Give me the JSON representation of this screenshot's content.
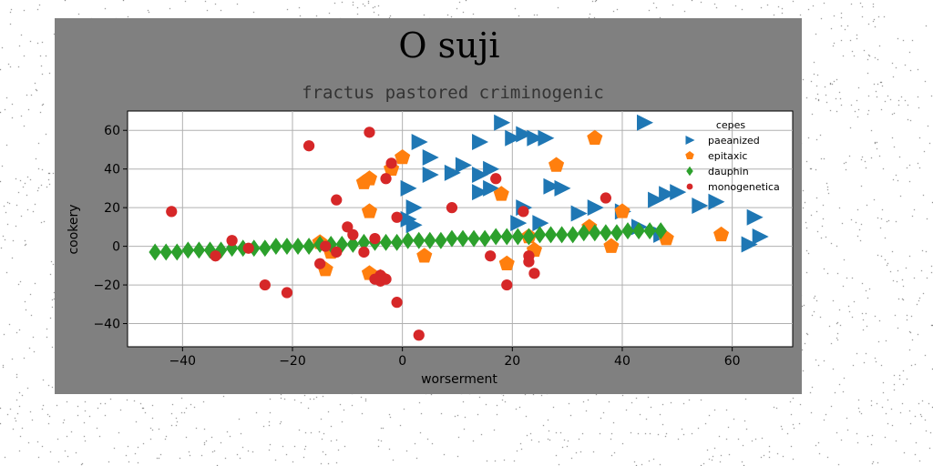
{
  "chart_data": {
    "type": "scatter",
    "title": "O suji",
    "subtitle": "fractus pastored criminogenic",
    "xlabel": "worserment",
    "ylabel": "cookery",
    "xlim": [
      -50,
      71
    ],
    "ylim": [
      -52,
      70
    ],
    "xticks": [
      -40,
      -20,
      0,
      20,
      40,
      60
    ],
    "yticks": [
      -40,
      -20,
      0,
      20,
      40,
      60
    ],
    "xtick_labels": [
      "−40",
      "−20",
      "0",
      "20",
      "40",
      "60"
    ],
    "ytick_labels": [
      "−40",
      "−20",
      "0",
      "20",
      "40",
      "60"
    ],
    "grid": true,
    "legend": {
      "title": "cepes",
      "placement": "top-right"
    },
    "series": [
      {
        "name": "paeanized",
        "marker": "triangle-right",
        "color": "#1f77b4",
        "points": [
          [
            18,
            64
          ],
          [
            44,
            64
          ],
          [
            22,
            58
          ],
          [
            24,
            56
          ],
          [
            26,
            56
          ],
          [
            20,
            56
          ],
          [
            3,
            54
          ],
          [
            14,
            54
          ],
          [
            5,
            46
          ],
          [
            11,
            42
          ],
          [
            16,
            40
          ],
          [
            5,
            37
          ],
          [
            9,
            38
          ],
          [
            14,
            37
          ],
          [
            1,
            30
          ],
          [
            14,
            28
          ],
          [
            16,
            30
          ],
          [
            27,
            31
          ],
          [
            29,
            30
          ],
          [
            22,
            20
          ],
          [
            32,
            17
          ],
          [
            35,
            20
          ],
          [
            48,
            27
          ],
          [
            50,
            28
          ],
          [
            54,
            21
          ],
          [
            57,
            23
          ],
          [
            46,
            24
          ],
          [
            2,
            20
          ],
          [
            1,
            14
          ],
          [
            2,
            11
          ],
          [
            21,
            12
          ],
          [
            25,
            12
          ],
          [
            43,
            10
          ],
          [
            47,
            6
          ],
          [
            64,
            15
          ],
          [
            63,
            1
          ],
          [
            65,
            5
          ],
          [
            40,
            18
          ]
        ]
      },
      {
        "name": "epitaxic",
        "marker": "pentagon",
        "color": "#ff7f0e",
        "points": [
          [
            35,
            56
          ],
          [
            0,
            46
          ],
          [
            -2,
            40
          ],
          [
            -6,
            35
          ],
          [
            -7,
            33
          ],
          [
            28,
            42
          ],
          [
            18,
            27
          ],
          [
            -6,
            18
          ],
          [
            34,
            10
          ],
          [
            40,
            18
          ],
          [
            23,
            5
          ],
          [
            24,
            -2
          ],
          [
            -15,
            2
          ],
          [
            -13,
            -3
          ],
          [
            -14,
            -12
          ],
          [
            -6,
            -14
          ],
          [
            4,
            -5
          ],
          [
            19,
            -9
          ],
          [
            38,
            0
          ],
          [
            48,
            4
          ],
          [
            58,
            6
          ],
          [
            -4,
            -16
          ]
        ]
      },
      {
        "name": "dauphin",
        "marker": "diamond",
        "color": "#2ca02c",
        "points": [
          [
            -45,
            -3
          ],
          [
            -43,
            -3
          ],
          [
            -41,
            -3
          ],
          [
            -39,
            -2
          ],
          [
            -37,
            -2
          ],
          [
            -35,
            -2
          ],
          [
            -33,
            -2
          ],
          [
            -31,
            -1
          ],
          [
            -29,
            -1
          ],
          [
            -27,
            -1
          ],
          [
            -25,
            -1
          ],
          [
            -23,
            0
          ],
          [
            -21,
            0
          ],
          [
            -19,
            0
          ],
          [
            -17,
            0
          ],
          [
            -15,
            1
          ],
          [
            -13,
            1
          ],
          [
            -11,
            1
          ],
          [
            -9,
            1
          ],
          [
            -7,
            2
          ],
          [
            -5,
            2
          ],
          [
            -3,
            2
          ],
          [
            -1,
            2
          ],
          [
            1,
            3
          ],
          [
            3,
            3
          ],
          [
            5,
            3
          ],
          [
            7,
            3
          ],
          [
            9,
            4
          ],
          [
            11,
            4
          ],
          [
            13,
            4
          ],
          [
            15,
            4
          ],
          [
            17,
            5
          ],
          [
            19,
            5
          ],
          [
            21,
            5
          ],
          [
            23,
            5
          ],
          [
            25,
            6
          ],
          [
            27,
            6
          ],
          [
            29,
            6
          ],
          [
            31,
            6
          ],
          [
            33,
            7
          ],
          [
            35,
            7
          ],
          [
            37,
            7
          ],
          [
            39,
            7
          ],
          [
            41,
            8
          ],
          [
            43,
            8
          ],
          [
            45,
            8
          ],
          [
            47,
            8
          ]
        ]
      },
      {
        "name": "monogenetica",
        "marker": "circle",
        "color": "#d62728",
        "points": [
          [
            -6,
            59
          ],
          [
            -17,
            52
          ],
          [
            -2,
            43
          ],
          [
            -3,
            35
          ],
          [
            -12,
            24
          ],
          [
            17,
            35
          ],
          [
            37,
            25
          ],
          [
            -42,
            18
          ],
          [
            -10,
            10
          ],
          [
            -9,
            6
          ],
          [
            -5,
            4
          ],
          [
            -1,
            15
          ],
          [
            9,
            20
          ],
          [
            22,
            18
          ],
          [
            -31,
            3
          ],
          [
            -28,
            -1
          ],
          [
            -34,
            -5
          ],
          [
            -14,
            0
          ],
          [
            -12,
            -3
          ],
          [
            -15,
            -9
          ],
          [
            -7,
            -3
          ],
          [
            -4,
            -15
          ],
          [
            -5,
            -17
          ],
          [
            -4,
            -18
          ],
          [
            -3,
            -17
          ],
          [
            16,
            -5
          ],
          [
            23,
            -5
          ],
          [
            23,
            -8
          ],
          [
            24,
            -14
          ],
          [
            19,
            -20
          ],
          [
            -25,
            -20
          ],
          [
            -21,
            -24
          ],
          [
            -1,
            -29
          ],
          [
            3,
            -46
          ]
        ]
      }
    ]
  }
}
